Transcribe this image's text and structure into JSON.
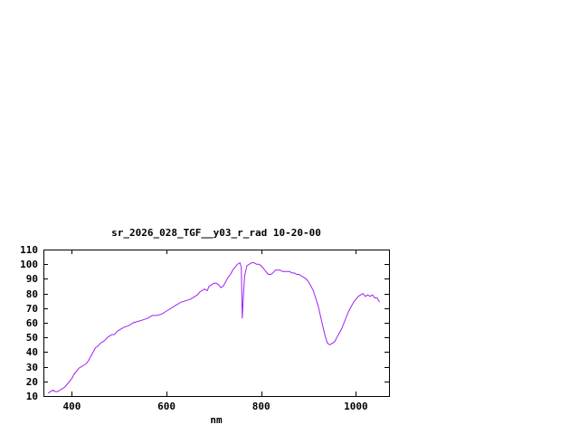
{
  "chart_data": {
    "type": "line",
    "title": "sr_2026_028_TGF__y03_r_rad 10-20-00",
    "xlabel": "nm",
    "ylabel": "",
    "xlim": [
      340,
      1070
    ],
    "ylim": [
      10,
      110
    ],
    "xticks": [
      400,
      600,
      800,
      1000
    ],
    "yticks": [
      10,
      20,
      30,
      40,
      50,
      60,
      70,
      80,
      90,
      100,
      110
    ],
    "grid": false,
    "legend": "none",
    "background_color": "#ffffff",
    "text_color": "#000000",
    "border_color": "#000000",
    "line_color": "#a020f0",
    "series": [
      {
        "name": "sr_2026_028_TGF__y03_r_rad",
        "x": [
          350,
          355,
          360,
          365,
          370,
          375,
          380,
          385,
          390,
          395,
          400,
          405,
          410,
          415,
          420,
          425,
          430,
          435,
          440,
          445,
          450,
          455,
          460,
          465,
          470,
          475,
          480,
          485,
          490,
          495,
          500,
          510,
          520,
          530,
          540,
          550,
          560,
          570,
          580,
          590,
          600,
          610,
          620,
          630,
          640,
          650,
          660,
          665,
          670,
          675,
          680,
          686,
          690,
          695,
          700,
          705,
          710,
          715,
          720,
          725,
          730,
          735,
          740,
          745,
          750,
          755,
          758,
          760,
          762,
          765,
          770,
          775,
          780,
          785,
          790,
          795,
          800,
          805,
          810,
          815,
          820,
          825,
          830,
          835,
          840,
          845,
          850,
          855,
          860,
          865,
          870,
          875,
          880,
          885,
          890,
          895,
          900,
          905,
          910,
          915,
          920,
          925,
          930,
          935,
          940,
          945,
          950,
          955,
          960,
          965,
          970,
          975,
          980,
          985,
          990,
          995,
          1000,
          1005,
          1010,
          1015,
          1020,
          1025,
          1030,
          1035,
          1040,
          1045,
          1050
        ],
        "y": [
          12,
          13,
          14,
          13,
          13,
          14,
          15,
          16,
          18,
          20,
          22,
          25,
          27,
          29,
          30,
          31,
          32,
          34,
          37,
          40,
          43,
          44,
          46,
          47,
          48,
          50,
          51,
          52,
          52,
          54,
          55,
          57,
          58,
          60,
          61,
          62,
          63,
          65,
          65,
          66,
          68,
          70,
          72,
          74,
          75,
          76,
          78,
          79,
          81,
          82,
          83,
          82,
          85,
          86,
          87,
          87,
          86,
          84,
          85,
          88,
          91,
          93,
          96,
          98,
          100,
          101,
          98,
          63,
          76,
          92,
          99,
          100,
          101,
          101,
          100,
          100,
          99,
          97,
          95,
          93,
          93,
          94,
          96,
          96,
          96,
          95,
          95,
          95,
          95,
          94,
          94,
          93,
          93,
          92,
          91,
          90,
          88,
          85,
          82,
          77,
          72,
          65,
          58,
          51,
          46,
          45,
          46,
          47,
          50,
          53,
          56,
          60,
          64,
          68,
          71,
          74,
          76,
          78,
          79,
          80,
          78,
          79,
          78,
          79,
          77,
          77,
          74
        ]
      }
    ]
  }
}
